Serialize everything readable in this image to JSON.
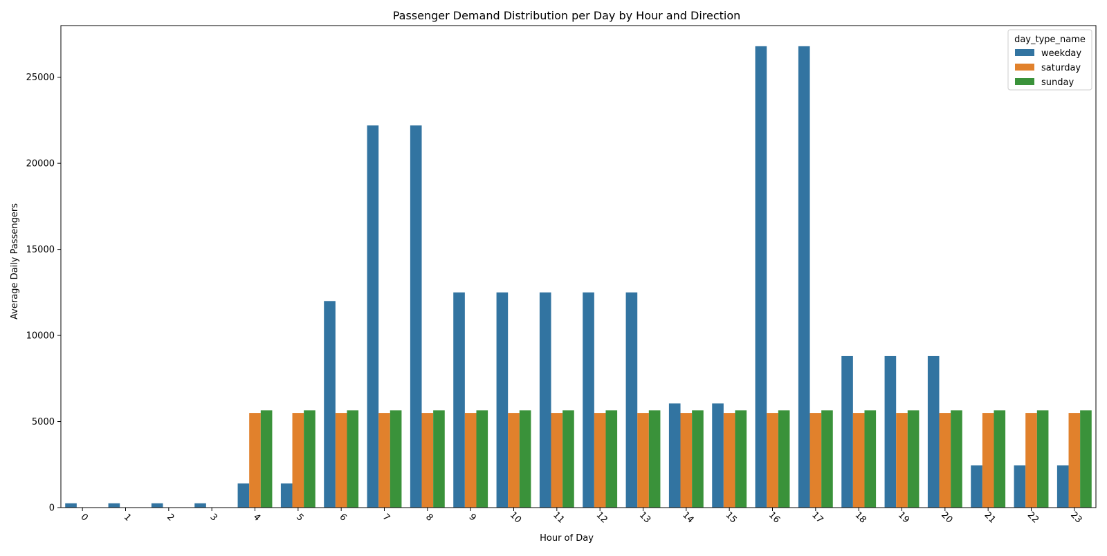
{
  "chart_data": {
    "type": "bar",
    "title": "Passenger Demand Distribution per Day by Hour and Direction",
    "xlabel": "Hour of Day",
    "ylabel": "Average Daily Passengers",
    "ylim": [
      0,
      28000
    ],
    "yticks": [
      0,
      5000,
      10000,
      15000,
      20000,
      25000
    ],
    "categories": [
      "0",
      "1",
      "2",
      "3",
      "4",
      "5",
      "6",
      "7",
      "8",
      "9",
      "10",
      "11",
      "12",
      "13",
      "14",
      "15",
      "16",
      "17",
      "18",
      "19",
      "20",
      "21",
      "22",
      "23"
    ],
    "legend": {
      "title": "day_type_name",
      "placement": "top-right"
    },
    "grid": false,
    "series": [
      {
        "name": "weekday",
        "color": "#3274a1",
        "values": [
          250,
          250,
          250,
          250,
          1400,
          1400,
          12000,
          22200,
          22200,
          12500,
          12500,
          12500,
          12500,
          12500,
          6050,
          6050,
          26800,
          26800,
          8800,
          8800,
          8800,
          2450,
          2450,
          2450
        ]
      },
      {
        "name": "saturday",
        "color": "#e1812c",
        "values": [
          0,
          0,
          0,
          0,
          5500,
          5500,
          5500,
          5500,
          5500,
          5500,
          5500,
          5500,
          5500,
          5500,
          5500,
          5500,
          5500,
          5500,
          5500,
          5500,
          5500,
          5500,
          5500,
          5500
        ]
      },
      {
        "name": "sunday",
        "color": "#3a923a",
        "values": [
          0,
          0,
          0,
          0,
          5650,
          5650,
          5650,
          5650,
          5650,
          5650,
          5650,
          5650,
          5650,
          5650,
          5650,
          5650,
          5650,
          5650,
          5650,
          5650,
          5650,
          5650,
          5650,
          5650
        ]
      }
    ]
  }
}
